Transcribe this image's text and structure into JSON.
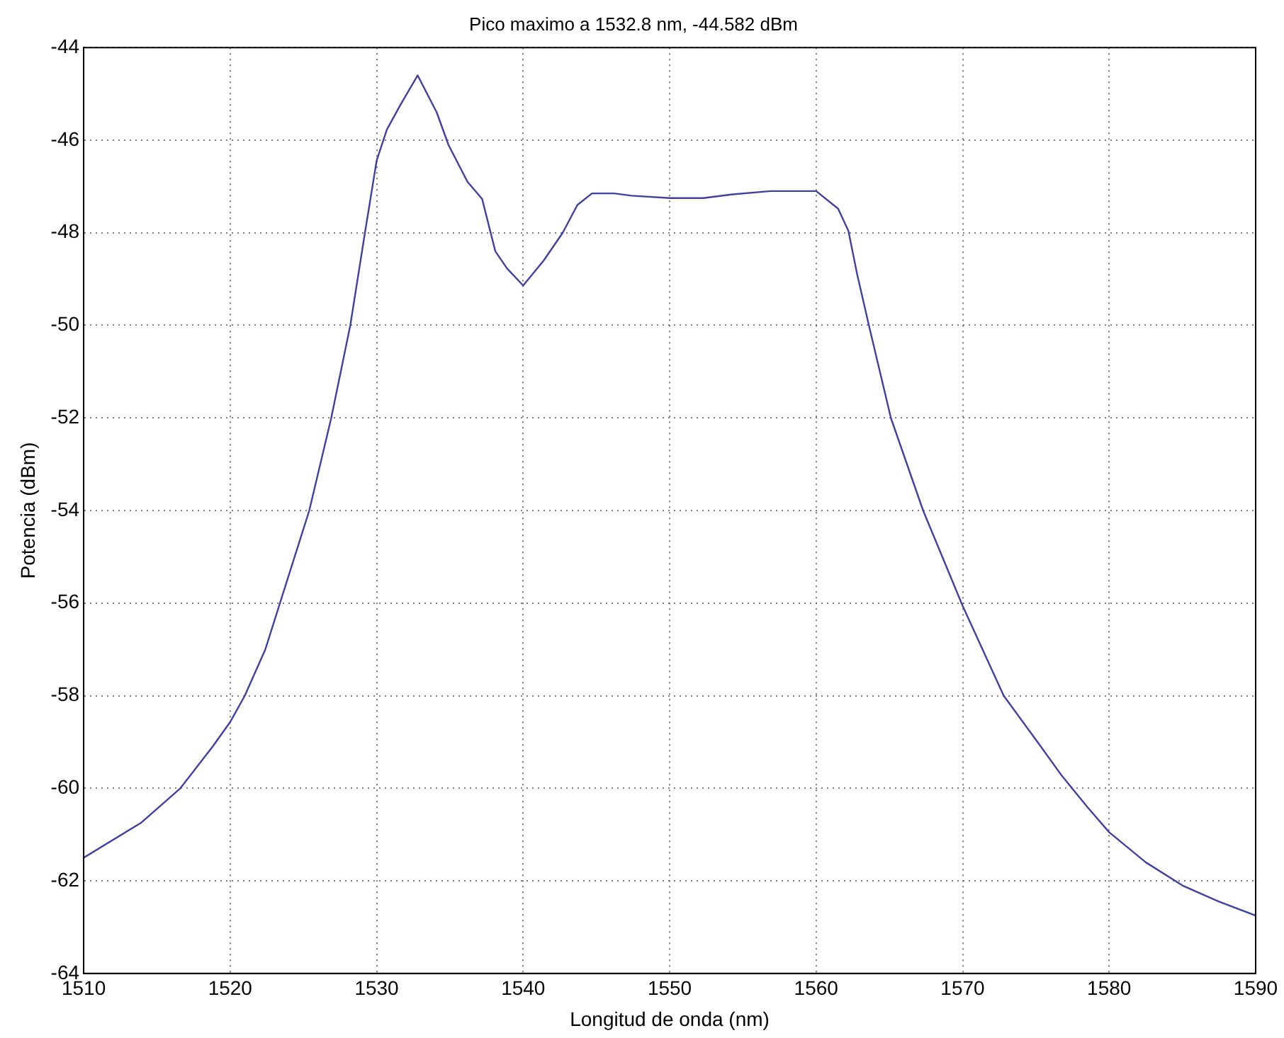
{
  "chart_data": {
    "type": "line",
    "title": "Pico maximo a 1532.8 nm, -44.582 dBm",
    "xlabel": "Longitud de onda (nm)",
    "ylabel": "Potencia (dBm)",
    "x": [
      1510,
      1513.9,
      1516.6,
      1518.8,
      1520,
      1521,
      1522.4,
      1523.4,
      1525.4,
      1526.9,
      1528.2,
      1529.2,
      1530,
      1530.7,
      1531.6,
      1532.8,
      1534.1,
      1534.9,
      1536.2,
      1537.2,
      1538.1,
      1538.9,
      1540,
      1541.4,
      1542.7,
      1543.7,
      1544.7,
      1546.2,
      1547.4,
      1550,
      1552.3,
      1554.3,
      1556.9,
      1560,
      1561.5,
      1562.2,
      1562.8,
      1563.6,
      1565.1,
      1567.3,
      1570,
      1572.8,
      1575.2,
      1576.7,
      1578.5,
      1580,
      1582.5,
      1585,
      1587.5,
      1590
    ],
    "series": [
      {
        "color": "#4040a0",
        "values": [
          -61.5,
          -60.75,
          -60.0,
          -59.1,
          -58.57,
          -58.0,
          -57.0,
          -56.0,
          -54.0,
          -52.0,
          -50.0,
          -48.0,
          -46.44,
          -45.77,
          -45.25,
          -44.6,
          -45.4,
          -46.1,
          -46.9,
          -47.27,
          -48.4,
          -48.77,
          -49.14,
          -48.6,
          -48.0,
          -47.4,
          -47.15,
          -47.15,
          -47.2,
          -47.25,
          -47.25,
          -47.17,
          -47.1,
          -47.1,
          -47.48,
          -47.96,
          -48.9,
          -50.0,
          -52.0,
          -54.0,
          -56.06,
          -58.0,
          -59.04,
          -59.7,
          -60.4,
          -60.95,
          -61.6,
          -62.1,
          -62.45,
          -62.75
        ]
      }
    ],
    "xlim": [
      1510,
      1590
    ],
    "xticks": [
      1510,
      1520,
      1530,
      1540,
      1550,
      1560,
      1570,
      1580,
      1590
    ],
    "ylim": [
      -64,
      -44
    ],
    "yticks": [
      -64,
      -62,
      -60,
      -58,
      -56,
      -54,
      -52,
      -50,
      -48,
      -46,
      -44
    ],
    "grid": true,
    "legend": false,
    "marker": "none",
    "line_style": "solid"
  }
}
